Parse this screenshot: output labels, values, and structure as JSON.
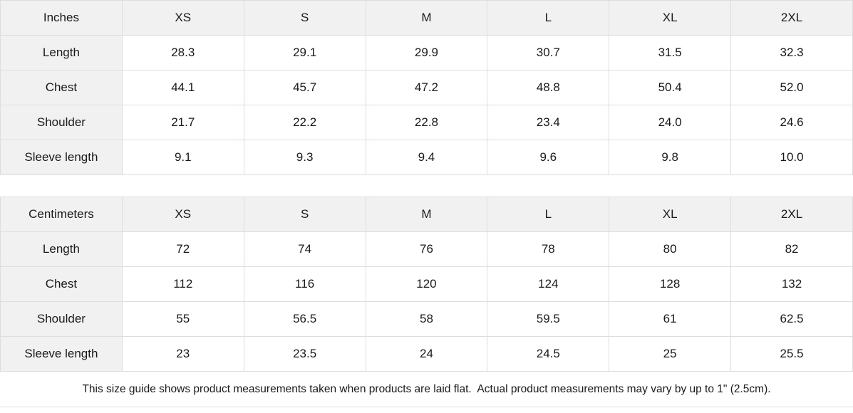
{
  "colors": {
    "header_bg": "#f1f1f1",
    "label_column_bg": "#f1f1f1",
    "cell_bg": "#ffffff",
    "border": "#dddddd",
    "text": "#1a1a1a"
  },
  "tables": {
    "inches": {
      "unit_label": "Inches",
      "sizes": [
        "XS",
        "S",
        "M",
        "L",
        "XL",
        "2XL"
      ],
      "rows": [
        {
          "label": "Length",
          "values": [
            "28.3",
            "29.1",
            "29.9",
            "30.7",
            "31.5",
            "32.3"
          ]
        },
        {
          "label": "Chest",
          "values": [
            "44.1",
            "45.7",
            "47.2",
            "48.8",
            "50.4",
            "52.0"
          ]
        },
        {
          "label": "Shoulder",
          "values": [
            "21.7",
            "22.2",
            "22.8",
            "23.4",
            "24.0",
            "24.6"
          ]
        },
        {
          "label": "Sleeve length",
          "values": [
            "9.1",
            "9.3",
            "9.4",
            "9.6",
            "9.8",
            "10.0"
          ]
        }
      ]
    },
    "centimeters": {
      "unit_label": "Centimeters",
      "sizes": [
        "XS",
        "S",
        "M",
        "L",
        "XL",
        "2XL"
      ],
      "rows": [
        {
          "label": "Length",
          "values": [
            "72",
            "74",
            "76",
            "78",
            "80",
            "82"
          ]
        },
        {
          "label": "Chest",
          "values": [
            "112",
            "116",
            "120",
            "124",
            "128",
            "132"
          ]
        },
        {
          "label": "Shoulder",
          "values": [
            "55",
            "56.5",
            "58",
            "59.5",
            "61",
            "62.5"
          ]
        },
        {
          "label": "Sleeve length",
          "values": [
            "23",
            "23.5",
            "24",
            "24.5",
            "25",
            "25.5"
          ]
        }
      ]
    }
  },
  "footer": {
    "note": "This size guide shows product measurements taken when products are laid flat.  Actual product measurements may vary by up to 1\" (2.5cm)."
  },
  "chart_data": [
    {
      "type": "table",
      "title": "Size guide (Inches)",
      "columns": [
        "Inches",
        "XS",
        "S",
        "M",
        "L",
        "XL",
        "2XL"
      ],
      "rows": [
        [
          "Length",
          28.3,
          29.1,
          29.9,
          30.7,
          31.5,
          32.3
        ],
        [
          "Chest",
          44.1,
          45.7,
          47.2,
          48.8,
          50.4,
          52.0
        ],
        [
          "Shoulder",
          21.7,
          22.2,
          22.8,
          23.4,
          24.0,
          24.6
        ],
        [
          "Sleeve length",
          9.1,
          9.3,
          9.4,
          9.6,
          9.8,
          10.0
        ]
      ]
    },
    {
      "type": "table",
      "title": "Size guide (Centimeters)",
      "columns": [
        "Centimeters",
        "XS",
        "S",
        "M",
        "L",
        "XL",
        "2XL"
      ],
      "rows": [
        [
          "Length",
          72,
          74,
          76,
          78,
          80,
          82
        ],
        [
          "Chest",
          112,
          116,
          120,
          124,
          128,
          132
        ],
        [
          "Shoulder",
          55,
          56.5,
          58,
          59.5,
          61,
          62.5
        ],
        [
          "Sleeve length",
          23,
          23.5,
          24,
          24.5,
          25,
          25.5
        ]
      ]
    }
  ]
}
